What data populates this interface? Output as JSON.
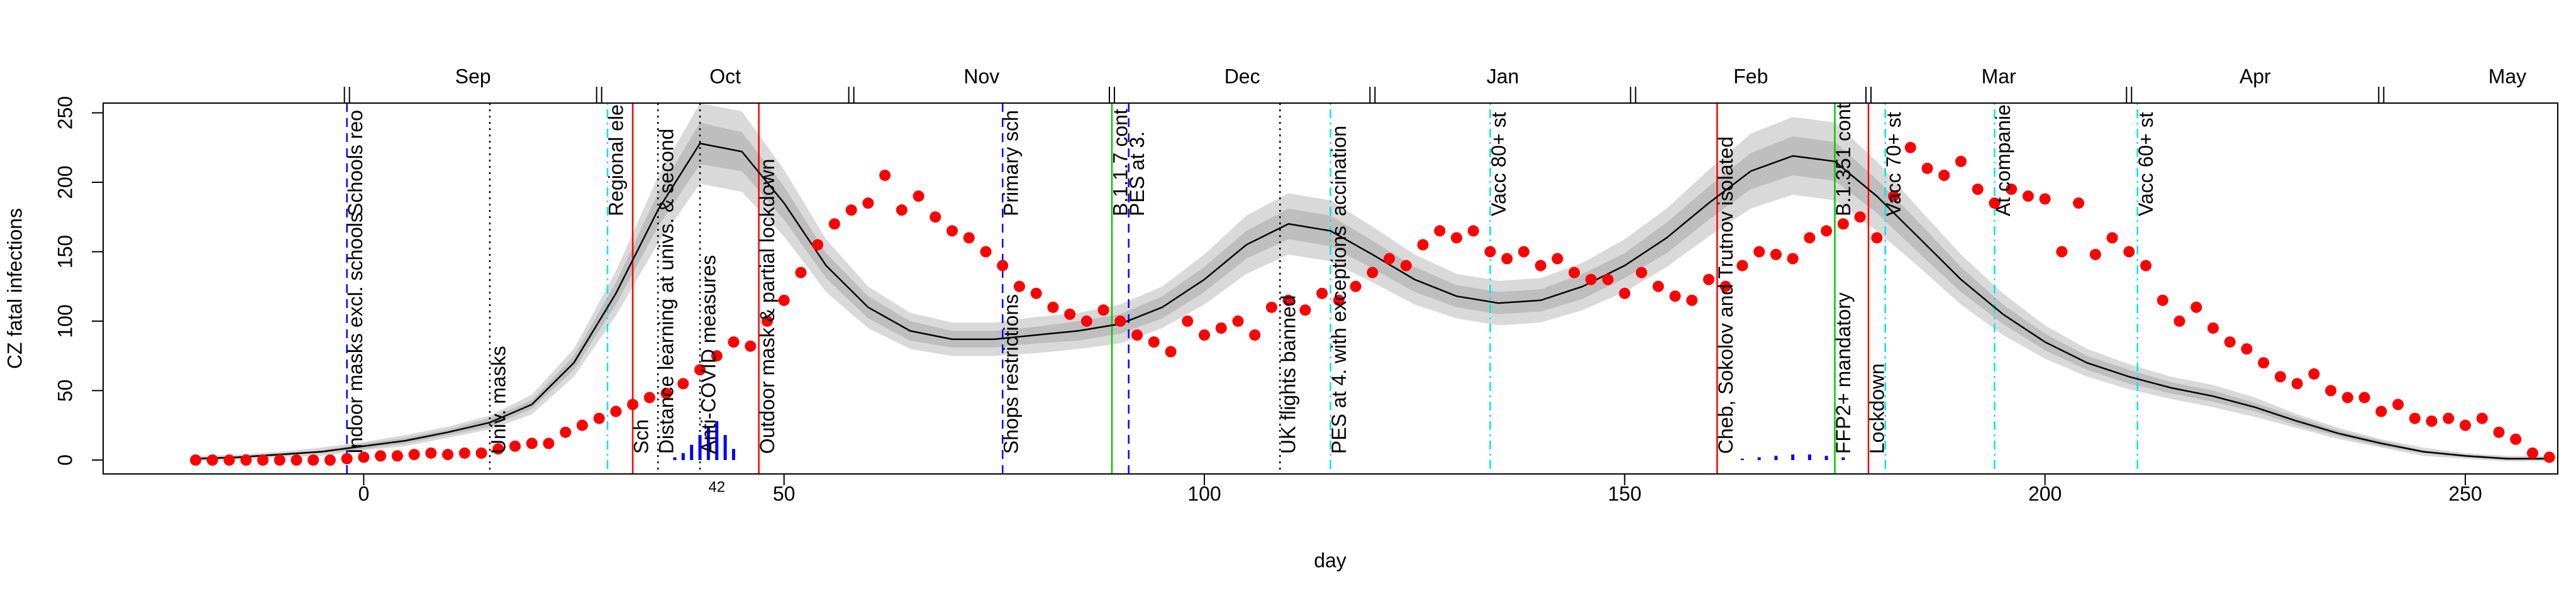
{
  "chart_data": {
    "type": "line",
    "xlabel": "day",
    "ylabel": "CZ fatal infections",
    "xlim": [
      -31,
      261
    ],
    "ylim": [
      -10,
      257
    ],
    "xticks": [
      0,
      50,
      100,
      150,
      200,
      250
    ],
    "yticks": [
      0,
      50,
      100,
      150,
      200,
      250
    ],
    "top_axis": {
      "ticks": [
        -2,
        28,
        58,
        89,
        120,
        151,
        179,
        210,
        240
      ],
      "labels": [
        "Sep",
        "Oct",
        "Nov",
        "Dec",
        "Jan",
        "Feb",
        "Mar",
        "Apr",
        "May"
      ]
    },
    "curve": {
      "color": "#000000",
      "band_inner_color": "#bebebe",
      "band_outer_color": "#d9d9d9",
      "x": [
        -20,
        -15,
        -10,
        -5,
        0,
        5,
        10,
        15,
        20,
        25,
        30,
        35,
        40,
        45,
        50,
        55,
        60,
        65,
        70,
        75,
        80,
        85,
        90,
        95,
        100,
        105,
        110,
        115,
        120,
        125,
        130,
        135,
        140,
        145,
        150,
        155,
        160,
        165,
        170,
        175,
        180,
        185,
        190,
        195,
        200,
        205,
        210,
        215,
        220,
        225,
        230,
        235,
        240,
        245,
        250,
        255,
        260
      ],
      "values": [
        1,
        2,
        4,
        6,
        10,
        14,
        20,
        27,
        40,
        70,
        120,
        180,
        228,
        222,
        185,
        140,
        110,
        93,
        87,
        87,
        90,
        93,
        98,
        110,
        130,
        155,
        170,
        165,
        148,
        130,
        118,
        113,
        115,
        125,
        140,
        160,
        185,
        208,
        219,
        215,
        190,
        160,
        130,
        105,
        85,
        70,
        60,
        52,
        46,
        38,
        28,
        19,
        12,
        6,
        3,
        1,
        1
      ],
      "band_inner": [
        1,
        1,
        1,
        1,
        2,
        2,
        2,
        3,
        3,
        5,
        8,
        12,
        15,
        14,
        12,
        9,
        8,
        7,
        6,
        6,
        6,
        7,
        7,
        8,
        9,
        10,
        11,
        11,
        10,
        9,
        8,
        8,
        8,
        9,
        9,
        11,
        12,
        13,
        14,
        14,
        12,
        11,
        9,
        7,
        6,
        5,
        5,
        4,
        4,
        3,
        3,
        2,
        2,
        1,
        1,
        1,
        1
      ],
      "band_outer": [
        2,
        2,
        2,
        3,
        3,
        4,
        4,
        5,
        7,
        10,
        16,
        24,
        29,
        29,
        24,
        19,
        15,
        13,
        12,
        12,
        13,
        13,
        14,
        15,
        18,
        21,
        22,
        22,
        20,
        18,
        16,
        16,
        16,
        17,
        19,
        21,
        24,
        27,
        28,
        28,
        25,
        21,
        18,
        15,
        12,
        10,
        9,
        8,
        8,
        7,
        5,
        4,
        3,
        3,
        2,
        2,
        2
      ]
    },
    "points": {
      "color": "#ff0000",
      "x": [
        -20,
        -18,
        -16,
        -14,
        -12,
        -10,
        -8,
        -6,
        -4,
        -2,
        0,
        2,
        4,
        6,
        8,
        10,
        12,
        14,
        16,
        18,
        20,
        22,
        24,
        26,
        28,
        30,
        32,
        34,
        36,
        38,
        40,
        42,
        44,
        46,
        48,
        50,
        52,
        54,
        56,
        58,
        60,
        62,
        64,
        66,
        68,
        70,
        72,
        74,
        76,
        78,
        80,
        82,
        84,
        86,
        88,
        90,
        92,
        94,
        96,
        98,
        100,
        102,
        104,
        106,
        108,
        110,
        112,
        114,
        116,
        118,
        120,
        122,
        124,
        126,
        128,
        130,
        132,
        134,
        136,
        138,
        140,
        142,
        144,
        146,
        148,
        150,
        152,
        154,
        156,
        158,
        160,
        162,
        164,
        166,
        168,
        170,
        172,
        174,
        176,
        178,
        180,
        182,
        184,
        186,
        188,
        190,
        192,
        194,
        196,
        198,
        200,
        202,
        204,
        206,
        208,
        210,
        212,
        214,
        216,
        218,
        220,
        222,
        224,
        226,
        228,
        230,
        232,
        234,
        236,
        238,
        240,
        242,
        244,
        246,
        248,
        250,
        252,
        254,
        256,
        258,
        260
      ],
      "values": [
        0,
        0,
        0,
        0,
        0,
        0,
        0,
        0,
        0,
        1,
        2,
        3,
        3,
        4,
        5,
        4,
        5,
        5,
        8,
        10,
        12,
        12,
        20,
        25,
        30,
        35,
        40,
        45,
        48,
        55,
        65,
        75,
        85,
        82,
        100,
        115,
        135,
        155,
        170,
        180,
        185,
        205,
        180,
        190,
        175,
        165,
        160,
        150,
        140,
        125,
        120,
        110,
        105,
        100,
        108,
        100,
        90,
        85,
        78,
        100,
        90,
        95,
        100,
        90,
        110,
        115,
        108,
        120,
        115,
        125,
        135,
        145,
        140,
        155,
        165,
        160,
        165,
        150,
        145,
        150,
        140,
        145,
        135,
        130,
        130,
        120,
        135,
        125,
        118,
        115,
        130,
        125,
        140,
        150,
        148,
        145,
        160,
        165,
        170,
        175,
        160,
        190,
        225,
        210,
        205,
        215,
        195,
        185,
        195,
        190,
        188,
        150,
        185,
        148,
        160,
        150,
        140,
        115,
        100,
        110,
        95,
        85,
        80,
        70,
        60,
        55,
        62,
        50,
        45,
        45,
        35,
        40,
        30,
        28,
        30,
        25,
        30,
        20,
        15,
        5,
        2
      ]
    },
    "spikes": {
      "color": "#0000ff",
      "x": [
        37,
        38,
        39,
        40,
        41,
        42,
        43,
        44,
        164,
        166,
        168,
        170,
        172,
        174,
        176
      ],
      "values": [
        2,
        5,
        11,
        18,
        24,
        28,
        18,
        8,
        1,
        2,
        3,
        4,
        4,
        3,
        2
      ],
      "peak_label": 42
    },
    "annotations": [
      {
        "day": -2,
        "color": "#0000ff",
        "style": "dashed",
        "labels": [
          {
            "text": "Schools reo",
            "color": "#0000ff",
            "position": "top"
          },
          {
            "text": "Indoor masks excl. schools",
            "color": "#000000",
            "position": "bottom"
          }
        ]
      },
      {
        "day": 15,
        "color": "#000000",
        "style": "dotted",
        "labels": [
          {
            "text": "Univ. masks",
            "color": "#000000",
            "position": "bottom"
          }
        ]
      },
      {
        "day": 29,
        "color": "#00e5ee",
        "style": "dotdash",
        "labels": [
          {
            "text": "Regional ele",
            "color": "#00e5ee",
            "position": "top"
          }
        ]
      },
      {
        "day": 32,
        "color": "#ff0000",
        "style": "solid",
        "labels": [
          {
            "text": "Sch",
            "color": "#ff0000",
            "position": "bottom"
          }
        ]
      },
      {
        "day": 35,
        "color": "#000000",
        "style": "dotted",
        "labels": [
          {
            "text": "Distance learning at univs. & second",
            "color": "#000000",
            "position": "bottom"
          }
        ]
      },
      {
        "day": 40,
        "color": "#000000",
        "style": "dotted",
        "labels": [
          {
            "text": "Anti-COVID measures",
            "color": "#000000",
            "position": "bottom"
          }
        ]
      },
      {
        "day": 47,
        "color": "#ff0000",
        "style": "solid",
        "labels": [
          {
            "text": "Outdoor mask & partial lockdown",
            "color": "#ff0000",
            "position": "bottom"
          }
        ]
      },
      {
        "day": 76,
        "color": "#0000ff",
        "style": "dashed",
        "labels": [
          {
            "text": "Primary sch",
            "color": "#0000ff",
            "position": "top"
          },
          {
            "text": "Shops restrictions",
            "color": "#000000",
            "position": "bottom"
          }
        ]
      },
      {
        "day": 89,
        "color": "#00cc00",
        "style": "solid",
        "labels": [
          {
            "text": "B.1.1.7 cont",
            "color": "#00cc00",
            "position": "top"
          }
        ]
      },
      {
        "day": 91,
        "color": "#0000ff",
        "style": "dashed",
        "labels": [
          {
            "text": "PES at 3.",
            "color": "#0000ff",
            "position": "top"
          }
        ]
      },
      {
        "day": 109,
        "color": "#000000",
        "style": "dotted",
        "labels": [
          {
            "text": "UK flights banned",
            "color": "#000000",
            "position": "bottom"
          }
        ]
      },
      {
        "day": 115,
        "color": "#00e5ee",
        "style": "dotdash",
        "labels": [
          {
            "text": "accination",
            "color": "#00e5ee",
            "position": "top"
          },
          {
            "text": "PES at 4. with exceptions",
            "color": "#000000",
            "position": "bottom"
          }
        ]
      },
      {
        "day": 134,
        "color": "#00e5ee",
        "style": "dotdash",
        "labels": [
          {
            "text": "Vacc 80+ st",
            "color": "#00e5ee",
            "position": "top"
          }
        ]
      },
      {
        "day": 161,
        "color": "#ff0000",
        "style": "solid",
        "labels": [
          {
            "text": "Cheb, Sokolov and Trutnov isolated",
            "color": "#ff0000",
            "position": "bottom"
          }
        ]
      },
      {
        "day": 175,
        "color": "#00cc00",
        "style": "solid",
        "labels": [
          {
            "text": "B.1.351 cont",
            "color": "#00cc00",
            "position": "top"
          },
          {
            "text": "FFP2+ mandatory",
            "color": "#000000",
            "position": "bottom"
          }
        ]
      },
      {
        "day": 179,
        "color": "#ff0000",
        "style": "solid",
        "labels": [
          {
            "text": "Lockdown",
            "color": "#ff0000",
            "position": "bottom"
          }
        ]
      },
      {
        "day": 181,
        "color": "#00e5ee",
        "style": "dotdash",
        "labels": [
          {
            "text": "Vacc 70+ st",
            "color": "#00e5ee",
            "position": "top"
          }
        ]
      },
      {
        "day": 194,
        "color": "#00e5ee",
        "style": "dotdash",
        "labels": [
          {
            "text": "At companie",
            "color": "#00e5ee",
            "position": "top"
          }
        ]
      },
      {
        "day": 211,
        "color": "#00e5ee",
        "style": "dotdash",
        "labels": [
          {
            "text": "Vacc 60+ st",
            "color": "#00e5ee",
            "position": "top"
          }
        ]
      }
    ]
  }
}
